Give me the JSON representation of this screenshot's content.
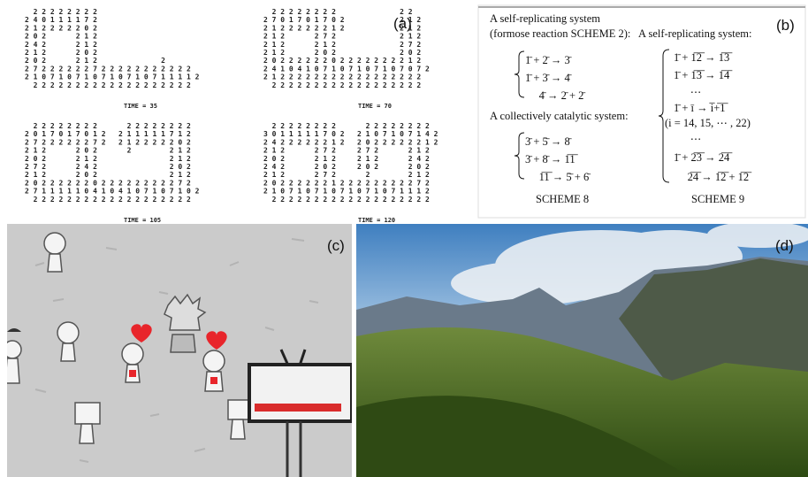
{
  "panels": {
    "a": {
      "label": "(a)",
      "grids": [
        {
          "rows": [
            "  2 2 2 2 2 2 2 2",
            "2 4 0 1 1 1 1 7 2",
            "2 1 2 2 2 2 2 0 2",
            "2 0 2       2 1 2",
            "2 4 2       2 1 2",
            "2 1 2       2 0 2",
            "2 0 2       2 1 2               2",
            "2 7 2 2 2 2 2 2 7 2 2 2 2 2 2 2 2 2 2 2",
            "2 1 0 7 1 0 7 1 0 7 1 0 7 1 0 7 1 1 1 1 2",
            "  2 2 2 2 2 2 2 2 2 2 2 2 2 2 2 2 2 2 2"
          ],
          "caption": "TIME = 35"
        },
        {
          "rows": [
            "  2 2 2 2 2 2 2 2               2 2",
            "2 7 0 1 7 0 1 7 0 2             2 1 2",
            "2 1 2 2 2 2 2 2 1 2             2 1 2",
            "2 1 2       2 7 2               2 1 2",
            "2 1 2       2 1 2               2 7 2",
            "2 1 2       2 0 2               2 0 2",
            "2 0 2 2 2 2 2 2 0 2 2 2 2 2 2 2 2 1 2",
            "2 4 1 0 4 1 0 7 1 0 7 1 0 7 1 0 7 0 7 2",
            "2 1 2 2 2 2 2 2 2 2 2 2 2 2 2 2 2 2 2",
            "  2 2 2 2 2 2 2 2 2 2 2 2 2 2 2 2 2 2"
          ],
          "caption": "TIME = 70"
        },
        {
          "rows": [
            "  2 2 2 2 2 2 2 2       2 2 2 2 2 2 2 2",
            "2 0 1 7 0 1 7 0 1 2   2 1 1 1 1 1 7 1 2",
            "2 7 2 2 2 2 2 2 7 2   2 1 2 2 2 2 2 0 2",
            "2 1 2       2 0 2       2         2 1 2",
            "2 0 2       2 1 2                 2 1 2",
            "2 7 2       2 4 2                 2 0 2",
            "2 1 2       2 0 2                 2 1 2",
            "2 0 2 2 2 2 2 2 0 2 2 2 2 2 2 2 2 2 7 2",
            "2 7 1 1 1 1 1 0 4 1 0 4 1 0 7 1 0 7 1 0 2",
            "  2 2 2 2 2 2 2 2 2 2 2 2 2 2 2 2 2 2 2"
          ],
          "caption": "TIME = 105"
        },
        {
          "rows": [
            "  2 2 2 2 2 2 2 2       2 2 2 2 2 2 2 2",
            "3 0 1 1 1 1 1 7 0 2   2 1 0 7 1 0 7 1 4 2",
            "2 4 2 2 2 2 2 2 1 2   2 0 2 2 2 2 2 2 1 2",
            "2 1 2       2 7 2     2 7 2       2 1 2",
            "2 0 2       2 1 2     2 1 2       2 4 2",
            "2 4 2       2 0 2     2 0 2       2 0 2",
            "2 1 2       2 7 2       2         2 1 2",
            "2 0 2 2 2 2 2 2 1 2 2 2 2 2 2 2 2 2 7 2",
            "2 1 0 7 1 0 7 1 0 7 1 0 7 1 0 7 1 1 1 2",
            "  2 2 2 2 2 2 2 2 2 2 2 2 2 2 2 2 2 2 2"
          ],
          "caption": "TIME = 120"
        }
      ]
    },
    "b": {
      "label": "(b)",
      "left": {
        "heading": [
          "A self-replicating system",
          "(formose reaction SCHEME 2):"
        ],
        "system1": [
          "1̄ + 2̄ → 3̄",
          "1̄ + 3̄ → 4̄",
          "     4̄ → 2̄ + 2̄"
        ],
        "heading2": "A collectively catalytic system:",
        "system2": [
          "3̄ + 5̄ → 8̄",
          "3̄ + 8̄ → 1̅1̅",
          "     1̅1̅ → 5̄ + 6̄"
        ],
        "caption": "SCHEME 8"
      },
      "right": {
        "heading": "A self-replicating system:",
        "lines": [
          "1̄ + 1̅2̅ → 1̅3̅",
          "1̄ + 1̅3̅ → 1̅4̅",
          "      ⋯",
          "1̄ + ī → i̅+̅1̅",
          "(i = 14, 15, ⋯ , 22)",
          "      ⋯",
          "1̄ + 2̅3̅ → 2̅4̅",
          "     2̅4̅ → 1̅2̅ + 1̅2̅"
        ],
        "caption": "SCHEME 9"
      }
    },
    "c": {
      "label": "(c)"
    },
    "d": {
      "label": "(d)"
    }
  }
}
